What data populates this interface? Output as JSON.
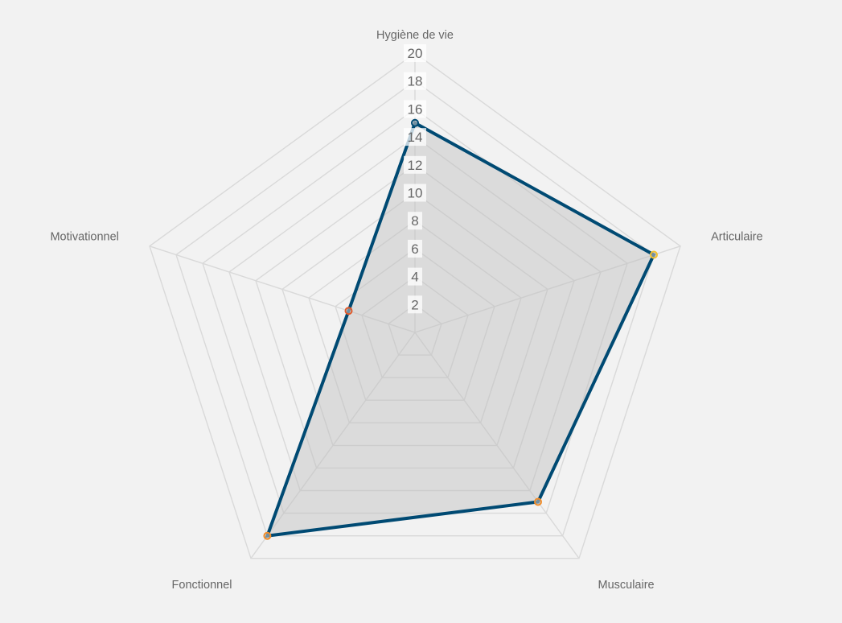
{
  "chart_data": {
    "type": "radar",
    "axes": [
      "Hygiène de vie",
      "Articulaire",
      "Musculaire",
      "Fonctionnel",
      "Motivationnel"
    ],
    "rmin": 0,
    "rmax": 20,
    "ticks": [
      2,
      4,
      6,
      8,
      10,
      12,
      14,
      16,
      18,
      20
    ],
    "series": [
      {
        "values": [
          15,
          18,
          15,
          18,
          5
        ],
        "point_border_colors": [
          "#004a73",
          "#f2c12e",
          "#f28c28",
          "#f28c28",
          "#e05a2b"
        ]
      }
    ],
    "grid": true,
    "line_color": "#004a73",
    "fill_color": "rgba(190,190,190,0.45)",
    "grid_color": "#d9d9d9",
    "background": "#f2f2f2"
  }
}
